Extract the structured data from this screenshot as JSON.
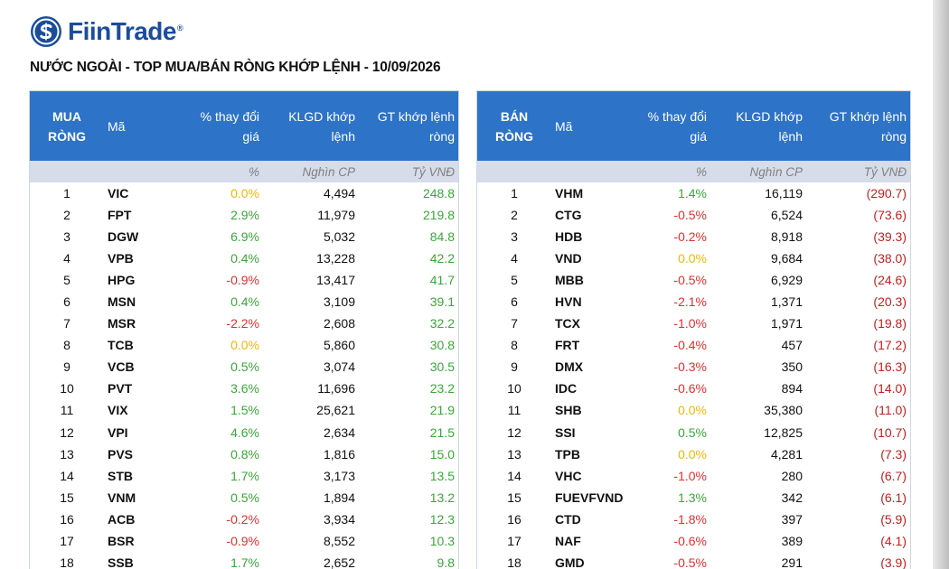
{
  "logo": {
    "text": "FiinTrade",
    "reg": "®",
    "brand_color": "#1b4d9c"
  },
  "report_title": "NƯỚC NGOÀI - TOP MUA/BÁN RÒNG KHỚP LỆNH - 10/09/2026",
  "colors": {
    "header_bg": "#2d73c7",
    "units_bg": "#d6dcea",
    "positive": "#3aa63a",
    "negative": "#e03030",
    "neutral": "#f2b705",
    "buy_value": "#3aa63a",
    "sell_value": "#c02020"
  },
  "buy_table": {
    "headers": {
      "rank": [
        "MUA",
        "RÒNG"
      ],
      "code": "Mã",
      "change": [
        "% thay đổi",
        "giá"
      ],
      "volume": [
        "KLGD khớp",
        "lệnh"
      ],
      "value": [
        "GT khớp lệnh",
        "ròng"
      ]
    },
    "units": {
      "change": "%",
      "volume": "Nghìn CP",
      "value": "Tỷ VNĐ"
    },
    "rows": [
      {
        "rank": "1",
        "code": "VIC",
        "change": "0.0%",
        "change_dir": "neutral",
        "volume": "4,494",
        "value": "248.8"
      },
      {
        "rank": "2",
        "code": "FPT",
        "change": "2.9%",
        "change_dir": "up",
        "volume": "11,979",
        "value": "219.8"
      },
      {
        "rank": "3",
        "code": "DGW",
        "change": "6.9%",
        "change_dir": "up",
        "volume": "5,032",
        "value": "84.8"
      },
      {
        "rank": "4",
        "code": "VPB",
        "change": "0.4%",
        "change_dir": "up",
        "volume": "13,228",
        "value": "42.2"
      },
      {
        "rank": "5",
        "code": "HPG",
        "change": "-0.9%",
        "change_dir": "down",
        "volume": "13,417",
        "value": "41.7"
      },
      {
        "rank": "6",
        "code": "MSN",
        "change": "0.4%",
        "change_dir": "up",
        "volume": "3,109",
        "value": "39.1"
      },
      {
        "rank": "7",
        "code": "MSR",
        "change": "-2.2%",
        "change_dir": "down",
        "volume": "2,608",
        "value": "32.2"
      },
      {
        "rank": "8",
        "code": "TCB",
        "change": "0.0%",
        "change_dir": "neutral",
        "volume": "5,860",
        "value": "30.8"
      },
      {
        "rank": "9",
        "code": "VCB",
        "change": "0.5%",
        "change_dir": "up",
        "volume": "3,074",
        "value": "30.5"
      },
      {
        "rank": "10",
        "code": "PVT",
        "change": "3.6%",
        "change_dir": "up",
        "volume": "11,696",
        "value": "23.2"
      },
      {
        "rank": "11",
        "code": "VIX",
        "change": "1.5%",
        "change_dir": "up",
        "volume": "25,621",
        "value": "21.9"
      },
      {
        "rank": "12",
        "code": "VPI",
        "change": "4.6%",
        "change_dir": "up",
        "volume": "2,634",
        "value": "21.5"
      },
      {
        "rank": "13",
        "code": "PVS",
        "change": "0.8%",
        "change_dir": "up",
        "volume": "1,816",
        "value": "15.0"
      },
      {
        "rank": "14",
        "code": "STB",
        "change": "1.7%",
        "change_dir": "up",
        "volume": "3,173",
        "value": "13.5"
      },
      {
        "rank": "15",
        "code": "VNM",
        "change": "0.5%",
        "change_dir": "up",
        "volume": "1,894",
        "value": "13.2"
      },
      {
        "rank": "16",
        "code": "ACB",
        "change": "-0.2%",
        "change_dir": "down",
        "volume": "3,934",
        "value": "12.3"
      },
      {
        "rank": "17",
        "code": "BSR",
        "change": "-0.9%",
        "change_dir": "down",
        "volume": "8,552",
        "value": "10.3"
      },
      {
        "rank": "18",
        "code": "SSB",
        "change": "1.7%",
        "change_dir": "up",
        "volume": "2,652",
        "value": "9.8"
      }
    ]
  },
  "sell_table": {
    "headers": {
      "rank": [
        "BÁN",
        "RÒNG"
      ],
      "code": "Mã",
      "change": [
        "% thay đổi",
        "giá"
      ],
      "volume": [
        "KLGD khớp",
        "lệnh"
      ],
      "value": [
        "GT khớp lệnh",
        "ròng"
      ]
    },
    "units": {
      "change": "%",
      "volume": "Nghìn CP",
      "value": "Tỷ VNĐ"
    },
    "rows": [
      {
        "rank": "1",
        "code": "VHM",
        "change": "1.4%",
        "change_dir": "up",
        "volume": "16,119",
        "value": "(290.7)"
      },
      {
        "rank": "2",
        "code": "CTG",
        "change": "-0.5%",
        "change_dir": "down",
        "volume": "6,524",
        "value": "(73.6)"
      },
      {
        "rank": "3",
        "code": "HDB",
        "change": "-0.2%",
        "change_dir": "down",
        "volume": "8,918",
        "value": "(39.3)"
      },
      {
        "rank": "4",
        "code": "VND",
        "change": "0.0%",
        "change_dir": "neutral",
        "volume": "9,684",
        "value": "(38.0)"
      },
      {
        "rank": "5",
        "code": "MBB",
        "change": "-0.5%",
        "change_dir": "down",
        "volume": "6,929",
        "value": "(24.6)"
      },
      {
        "rank": "6",
        "code": "HVN",
        "change": "-2.1%",
        "change_dir": "down",
        "volume": "1,371",
        "value": "(20.3)"
      },
      {
        "rank": "7",
        "code": "TCX",
        "change": "-1.0%",
        "change_dir": "down",
        "volume": "1,971",
        "value": "(19.8)"
      },
      {
        "rank": "8",
        "code": "FRT",
        "change": "-0.4%",
        "change_dir": "down",
        "volume": "457",
        "value": "(17.2)"
      },
      {
        "rank": "9",
        "code": "DMX",
        "change": "-0.3%",
        "change_dir": "down",
        "volume": "350",
        "value": "(16.3)"
      },
      {
        "rank": "10",
        "code": "IDC",
        "change": "-0.6%",
        "change_dir": "down",
        "volume": "894",
        "value": "(14.0)"
      },
      {
        "rank": "11",
        "code": "SHB",
        "change": "0.0%",
        "change_dir": "neutral",
        "volume": "35,380",
        "value": "(11.0)"
      },
      {
        "rank": "12",
        "code": "SSI",
        "change": "0.5%",
        "change_dir": "up",
        "volume": "12,825",
        "value": "(10.7)"
      },
      {
        "rank": "13",
        "code": "TPB",
        "change": "0.0%",
        "change_dir": "neutral",
        "volume": "4,281",
        "value": "(7.3)"
      },
      {
        "rank": "14",
        "code": "VHC",
        "change": "-1.0%",
        "change_dir": "down",
        "volume": "280",
        "value": "(6.7)"
      },
      {
        "rank": "15",
        "code": "FUEVFVND",
        "change": "1.3%",
        "change_dir": "up",
        "volume": "342",
        "value": "(6.1)"
      },
      {
        "rank": "16",
        "code": "CTD",
        "change": "-1.8%",
        "change_dir": "down",
        "volume": "397",
        "value": "(5.9)"
      },
      {
        "rank": "17",
        "code": "NAF",
        "change": "-0.6%",
        "change_dir": "down",
        "volume": "389",
        "value": "(4.1)"
      },
      {
        "rank": "18",
        "code": "GMD",
        "change": "-0.5%",
        "change_dir": "down",
        "volume": "291",
        "value": "(3.9)"
      }
    ]
  }
}
